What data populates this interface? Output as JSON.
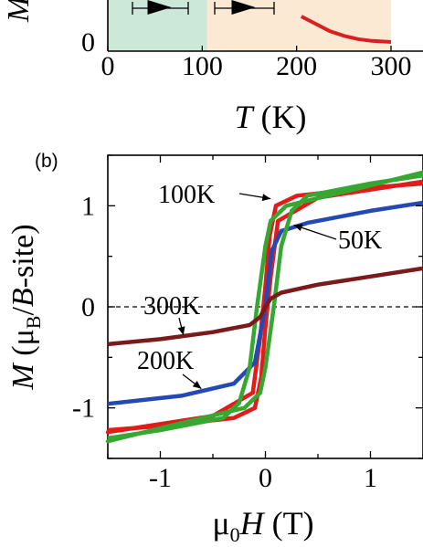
{
  "panel_a": {
    "chart_data": {
      "type": "line",
      "xlabel_symbol": "T",
      "xlabel_unit": "(K)",
      "ylabel_symbol": "M",
      "xlim": [
        0,
        300
      ],
      "x_ticks": [
        "0",
        "100",
        "200",
        "300"
      ],
      "y_ticks": [
        "0"
      ],
      "regions": [
        {
          "x_start": 0,
          "x_end": 105,
          "color": "#cbe8d9"
        },
        {
          "x_start": 105,
          "x_end": 300,
          "color": "#fbe9d3"
        }
      ],
      "series": [
        {
          "color": "#d92020",
          "x": [
            205,
            220,
            235,
            250,
            265,
            280,
            295,
            300
          ],
          "y": [
            0.95,
            0.75,
            0.55,
            0.42,
            0.33,
            0.28,
            0.26,
            0.25
          ]
        }
      ]
    }
  },
  "panel_b": {
    "label": "(b)",
    "chart_data": {
      "type": "scatter",
      "xlabel_prefix": "μ",
      "xlabel_sub": "0",
      "xlabel_symbol": "H",
      "xlabel_unit": "(T)",
      "ylabel_symbol": "M",
      "ylabel_unit_open": "(μ",
      "ylabel_unit_sub": "B",
      "ylabel_unit_mid": "/",
      "ylabel_unit_B": "B",
      "ylabel_unit_close": "-site)",
      "xlim": [
        -1.5,
        1.5
      ],
      "ylim": [
        -1.5,
        1.5
      ],
      "x_ticks": [
        "-1",
        "0",
        "1"
      ],
      "y_ticks": [
        "-1",
        "0",
        "1"
      ],
      "zero_line": true,
      "series": [
        {
          "name": "100K",
          "color": "#e21b1b",
          "upper": [
            [
              -1.5,
              -1.24
            ],
            [
              -0.5,
              -1.08
            ],
            [
              -0.12,
              -0.85
            ],
            [
              -0.05,
              -0.3
            ],
            [
              0.0,
              0.2
            ],
            [
              0.04,
              0.7
            ],
            [
              0.1,
              1.0
            ],
            [
              0.3,
              1.1
            ],
            [
              1.0,
              1.18
            ],
            [
              1.5,
              1.22
            ]
          ],
          "lower": [
            [
              -1.5,
              -1.22
            ],
            [
              -1.0,
              -1.18
            ],
            [
              -0.3,
              -1.1
            ],
            [
              -0.1,
              -1.0
            ],
            [
              -0.04,
              -0.7
            ],
            [
              0.0,
              -0.2
            ],
            [
              0.05,
              0.3
            ],
            [
              0.12,
              0.85
            ],
            [
              0.5,
              1.08
            ],
            [
              1.5,
              1.24
            ]
          ]
        },
        {
          "name": "50K",
          "color": "#2448b4",
          "upper": [
            [
              -1.5,
              -0.96
            ],
            [
              -0.8,
              -0.88
            ],
            [
              -0.3,
              -0.76
            ],
            [
              -0.1,
              -0.55
            ],
            [
              0.0,
              0.0
            ],
            [
              0.06,
              0.55
            ],
            [
              0.15,
              0.75
            ],
            [
              0.4,
              0.83
            ],
            [
              1.0,
              0.95
            ],
            [
              1.5,
              1.03
            ]
          ]
        },
        {
          "name": "",
          "color": "#36a832",
          "upper": [
            [
              -1.5,
              -1.3
            ],
            [
              -1.0,
              -1.22
            ],
            [
              -0.4,
              -1.1
            ],
            [
              -0.25,
              -0.95
            ],
            [
              -0.15,
              -0.6
            ],
            [
              -0.08,
              0.0
            ],
            [
              0.0,
              0.6
            ],
            [
              0.05,
              0.85
            ],
            [
              0.2,
              1.0
            ],
            [
              0.8,
              1.15
            ],
            [
              1.5,
              1.33
            ]
          ],
          "lower": [
            [
              -1.5,
              -1.33
            ],
            [
              -0.8,
              -1.15
            ],
            [
              -0.2,
              -1.0
            ],
            [
              -0.05,
              -0.85
            ],
            [
              0.0,
              -0.6
            ],
            [
              0.08,
              0.0
            ],
            [
              0.15,
              0.6
            ],
            [
              0.25,
              0.95
            ],
            [
              0.4,
              1.1
            ],
            [
              1.0,
              1.22
            ],
            [
              1.5,
              1.3
            ]
          ]
        },
        {
          "name": "300K",
          "color": "#7a1a1a",
          "upper": [
            [
              -1.5,
              -0.37
            ],
            [
              -1.0,
              -0.32
            ],
            [
              -0.5,
              -0.25
            ],
            [
              -0.15,
              -0.18
            ],
            [
              -0.05,
              -0.1
            ],
            [
              0.0,
              0.0
            ],
            [
              0.05,
              0.08
            ],
            [
              0.15,
              0.14
            ],
            [
              0.5,
              0.22
            ],
            [
              1.0,
              0.3
            ],
            [
              1.5,
              0.38
            ]
          ]
        }
      ],
      "annotations": [
        {
          "text": "100K",
          "target": [
            0.05,
            1.07
          ]
        },
        {
          "text": "50K",
          "target": [
            0.27,
            0.81
          ]
        },
        {
          "text": "300K",
          "target": [
            -0.78,
            -0.28
          ]
        },
        {
          "text": "200K",
          "target": [
            -0.61,
            -0.81
          ]
        }
      ]
    }
  }
}
